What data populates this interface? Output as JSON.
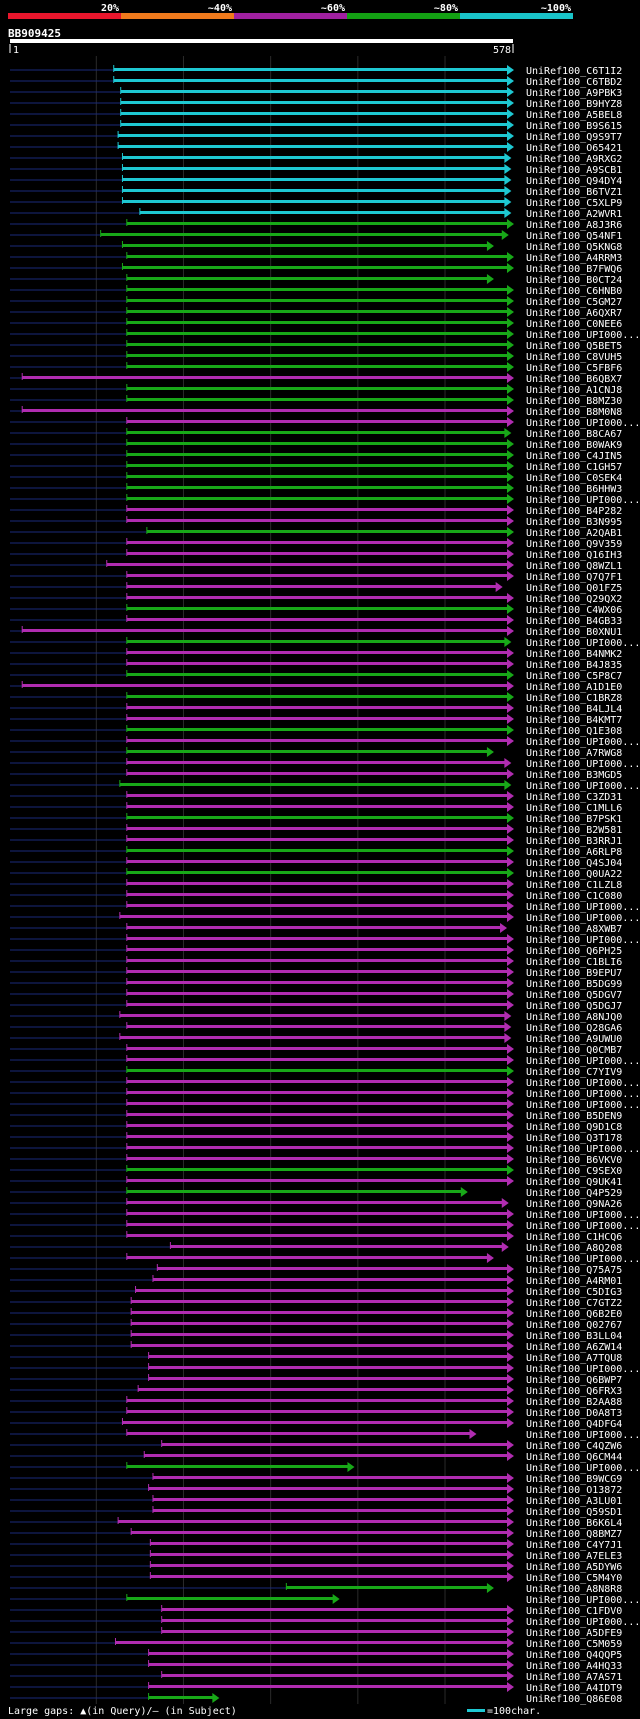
{
  "title": "BB909425",
  "query_start": "1",
  "query_end": "578",
  "query_length": 578,
  "identity_legend": {
    "labels": [
      "20%",
      "~40%",
      "~60%",
      "~80%",
      "~100%"
    ],
    "colors": [
      "#e8162c",
      "#f07a1c",
      "#a020a0",
      "#13a013",
      "#19c3c8"
    ]
  },
  "footer": {
    "gaps_text": "Large gaps: ▲(in Query)/— (in Subject)",
    "scale_text": "=100char."
  },
  "colors": {
    "cyan": "#1ec8d2",
    "green": "#18a818",
    "purple": "#b02cb0",
    "navy": "#1a2a7a",
    "arrow": "#ffffff"
  },
  "chart_data": {
    "type": "alignment_overview",
    "hits": [
      {
        "name": "UniRef100_C6T1I2",
        "color": "cyan",
        "start": 120,
        "end": 578
      },
      {
        "name": "UniRef100_C6TBD2",
        "color": "cyan",
        "start": 120,
        "end": 578
      },
      {
        "name": "UniRef100_A9PBK3",
        "color": "cyan",
        "start": 128,
        "end": 578
      },
      {
        "name": "UniRef100_B9HYZ8",
        "color": "cyan",
        "start": 128,
        "end": 578
      },
      {
        "name": "UniRef100_A5BEL8",
        "color": "cyan",
        "start": 128,
        "end": 578
      },
      {
        "name": "UniRef100_B9S615",
        "color": "cyan",
        "start": 128,
        "end": 578
      },
      {
        "name": "UniRef100_Q9S9T7",
        "color": "cyan",
        "start": 125,
        "end": 578
      },
      {
        "name": "UniRef100_O65421",
        "color": "cyan",
        "start": 125,
        "end": 578
      },
      {
        "name": "UniRef100_A9RXG2",
        "color": "cyan",
        "start": 130,
        "end": 575
      },
      {
        "name": "UniRef100_A9SCB1",
        "color": "cyan",
        "start": 130,
        "end": 575
      },
      {
        "name": "UniRef100_Q94DY4",
        "color": "cyan",
        "start": 130,
        "end": 575
      },
      {
        "name": "UniRef100_B6TVZ1",
        "color": "cyan",
        "start": 130,
        "end": 575
      },
      {
        "name": "UniRef100_C5XLP9",
        "color": "cyan",
        "start": 130,
        "end": 575
      },
      {
        "name": "UniRef100_A2WVR1",
        "color": "cyan",
        "start": 150,
        "end": 575
      },
      {
        "name": "UniRef100_A8J3R6",
        "color": "green",
        "start": 135,
        "end": 578
      },
      {
        "name": "UniRef100_Q54NF1",
        "color": "green",
        "start": 105,
        "end": 572
      },
      {
        "name": "UniRef100_Q5KNG8",
        "color": "green",
        "start": 130,
        "end": 555
      },
      {
        "name": "UniRef100_A4RRM3",
        "color": "green",
        "start": 135,
        "end": 578
      },
      {
        "name": "UniRef100_B7FWQ6",
        "color": "green",
        "start": 130,
        "end": 578
      },
      {
        "name": "UniRef100_B0CT24",
        "color": "green",
        "start": 135,
        "end": 555
      },
      {
        "name": "UniRef100_C6HNB0",
        "color": "green",
        "start": 135,
        "end": 578
      },
      {
        "name": "UniRef100_C5GM27",
        "color": "green",
        "start": 135,
        "end": 578
      },
      {
        "name": "UniRef100_A6QXR7",
        "color": "green",
        "start": 135,
        "end": 578
      },
      {
        "name": "UniRef100_C0NEE6",
        "color": "green",
        "start": 135,
        "end": 578
      },
      {
        "name": "UniRef100_UPI000...",
        "color": "green",
        "start": 135,
        "end": 578
      },
      {
        "name": "UniRef100_Q5BET5",
        "color": "green",
        "start": 135,
        "end": 578
      },
      {
        "name": "UniRef100_C8VUH5",
        "color": "green",
        "start": 135,
        "end": 578
      },
      {
        "name": "UniRef100_C5FBF6",
        "color": "green",
        "start": 135,
        "end": 578
      },
      {
        "name": "UniRef100_B6QBX7",
        "color": "purple",
        "start": 15,
        "end": 578
      },
      {
        "name": "UniRef100_A1CNJ8",
        "color": "green",
        "start": 135,
        "end": 578
      },
      {
        "name": "UniRef100_B8MZ30",
        "color": "green",
        "start": 135,
        "end": 578
      },
      {
        "name": "UniRef100_B8M0N8",
        "color": "purple",
        "start": 15,
        "end": 578
      },
      {
        "name": "UniRef100_UPI000...",
        "color": "purple",
        "start": 135,
        "end": 578
      },
      {
        "name": "UniRef100_B8CA67",
        "color": "green",
        "start": 135,
        "end": 575
      },
      {
        "name": "UniRef100_B0WAK9",
        "color": "green",
        "start": 135,
        "end": 578
      },
      {
        "name": "UniRef100_C4JIN5",
        "color": "green",
        "start": 135,
        "end": 578
      },
      {
        "name": "UniRef100_C1GH57",
        "color": "green",
        "start": 135,
        "end": 578
      },
      {
        "name": "UniRef100_C0SEK4",
        "color": "green",
        "start": 135,
        "end": 578
      },
      {
        "name": "UniRef100_B6HHW3",
        "color": "green",
        "start": 135,
        "end": 578
      },
      {
        "name": "UniRef100_UPI000...",
        "color": "green",
        "start": 135,
        "end": 578
      },
      {
        "name": "UniRef100_B4P282",
        "color": "purple",
        "start": 135,
        "end": 578
      },
      {
        "name": "UniRef100_B3N995",
        "color": "purple",
        "start": 135,
        "end": 578
      },
      {
        "name": "UniRef100_A2QAB1",
        "color": "green",
        "start": 158,
        "end": 578
      },
      {
        "name": "UniRef100_Q9V359",
        "color": "purple",
        "start": 135,
        "end": 578
      },
      {
        "name": "UniRef100_Q16IH3",
        "color": "purple",
        "start": 135,
        "end": 578
      },
      {
        "name": "UniRef100_Q8WZL1",
        "color": "purple",
        "start": 112,
        "end": 578
      },
      {
        "name": "UniRef100_Q7Q7F1",
        "color": "purple",
        "start": 135,
        "end": 578
      },
      {
        "name": "UniRef100_Q01FZ5",
        "color": "purple",
        "start": 135,
        "end": 565
      },
      {
        "name": "UniRef100_Q29QX2",
        "color": "purple",
        "start": 135,
        "end": 578
      },
      {
        "name": "UniRef100_C4WX06",
        "color": "green",
        "start": 135,
        "end": 578
      },
      {
        "name": "UniRef100_B4GB33",
        "color": "purple",
        "start": 135,
        "end": 578
      },
      {
        "name": "UniRef100_B0XNU1",
        "color": "purple",
        "start": 15,
        "end": 578
      },
      {
        "name": "UniRef100_UPI000...",
        "color": "green",
        "start": 135,
        "end": 575
      },
      {
        "name": "UniRef100_B4NMK2",
        "color": "purple",
        "start": 135,
        "end": 578
      },
      {
        "name": "UniRef100_B4J835",
        "color": "purple",
        "start": 135,
        "end": 578
      },
      {
        "name": "UniRef100_C5P8C7",
        "color": "green",
        "start": 135,
        "end": 578
      },
      {
        "name": "UniRef100_A1D1E0",
        "color": "purple",
        "start": 15,
        "end": 578
      },
      {
        "name": "UniRef100_C1BRZ8",
        "color": "green",
        "start": 135,
        "end": 578
      },
      {
        "name": "UniRef100_B4LJL4",
        "color": "purple",
        "start": 135,
        "end": 578
      },
      {
        "name": "UniRef100_B4KMT7",
        "color": "purple",
        "start": 135,
        "end": 578
      },
      {
        "name": "UniRef100_Q1E308",
        "color": "green",
        "start": 135,
        "end": 578
      },
      {
        "name": "UniRef100_UPI000...",
        "color": "purple",
        "start": 135,
        "end": 578
      },
      {
        "name": "UniRef100_A7RWG8",
        "color": "green",
        "start": 135,
        "end": 555
      },
      {
        "name": "UniRef100_UPI000...",
        "color": "purple",
        "start": 135,
        "end": 575
      },
      {
        "name": "UniRef100_B3MGD5",
        "color": "purple",
        "start": 135,
        "end": 578
      },
      {
        "name": "UniRef100_UPI000...",
        "color": "green",
        "start": 127,
        "end": 575
      },
      {
        "name": "UniRef100_C3ZD31",
        "color": "purple",
        "start": 135,
        "end": 578
      },
      {
        "name": "UniRef100_C1MLL6",
        "color": "purple",
        "start": 135,
        "end": 578
      },
      {
        "name": "UniRef100_B7PSK1",
        "color": "green",
        "start": 135,
        "end": 578
      },
      {
        "name": "UniRef100_B2W581",
        "color": "purple",
        "start": 135,
        "end": 578
      },
      {
        "name": "UniRef100_B3RRJ1",
        "color": "purple",
        "start": 135,
        "end": 578
      },
      {
        "name": "UniRef100_A6RLP8",
        "color": "green",
        "start": 135,
        "end": 578
      },
      {
        "name": "UniRef100_Q4SJ04",
        "color": "purple",
        "start": 135,
        "end": 578
      },
      {
        "name": "UniRef100_Q0UA22",
        "color": "green",
        "start": 135,
        "end": 578
      },
      {
        "name": "UniRef100_C1LZL8",
        "color": "purple",
        "start": 135,
        "end": 578
      },
      {
        "name": "UniRef100_C1C080",
        "color": "purple",
        "start": 135,
        "end": 578
      },
      {
        "name": "UniRef100_UPI000...",
        "color": "purple",
        "start": 135,
        "end": 578
      },
      {
        "name": "UniRef100_UPI000...",
        "color": "purple",
        "start": 127,
        "end": 578
      },
      {
        "name": "UniRef100_A8XWB7",
        "color": "purple",
        "start": 135,
        "end": 570
      },
      {
        "name": "UniRef100_UPI000...",
        "color": "purple",
        "start": 135,
        "end": 578
      },
      {
        "name": "UniRef100_Q6PH25",
        "color": "purple",
        "start": 135,
        "end": 578
      },
      {
        "name": "UniRef100_C1BLI6",
        "color": "purple",
        "start": 135,
        "end": 578
      },
      {
        "name": "UniRef100_B9EPU7",
        "color": "purple",
        "start": 135,
        "end": 578
      },
      {
        "name": "UniRef100_B5DG99",
        "color": "purple",
        "start": 135,
        "end": 578
      },
      {
        "name": "UniRef100_Q5DGV7",
        "color": "purple",
        "start": 135,
        "end": 578
      },
      {
        "name": "UniRef100_Q5DGJ7",
        "color": "purple",
        "start": 135,
        "end": 578
      },
      {
        "name": "UniRef100_A8NJQ0",
        "color": "purple",
        "start": 127,
        "end": 575
      },
      {
        "name": "UniRef100_Q28GA6",
        "color": "purple",
        "start": 135,
        "end": 575
      },
      {
        "name": "UniRef100_A9UWU0",
        "color": "purple",
        "start": 127,
        "end": 575
      },
      {
        "name": "UniRef100_Q0CMB7",
        "color": "purple",
        "start": 135,
        "end": 578
      },
      {
        "name": "UniRef100_UPI000...",
        "color": "purple",
        "start": 135,
        "end": 578
      },
      {
        "name": "UniRef100_C7YIV9",
        "color": "green",
        "start": 135,
        "end": 578
      },
      {
        "name": "UniRef100_UPI000...",
        "color": "purple",
        "start": 135,
        "end": 578
      },
      {
        "name": "UniRef100_UPI000...",
        "color": "purple",
        "start": 135,
        "end": 578
      },
      {
        "name": "UniRef100_UPI000...",
        "color": "purple",
        "start": 135,
        "end": 578
      },
      {
        "name": "UniRef100_B5DEN9",
        "color": "purple",
        "start": 135,
        "end": 578
      },
      {
        "name": "UniRef100_Q9D1C8",
        "color": "purple",
        "start": 135,
        "end": 578
      },
      {
        "name": "UniRef100_Q3T178",
        "color": "purple",
        "start": 135,
        "end": 578
      },
      {
        "name": "UniRef100_UPI000...",
        "color": "purple",
        "start": 135,
        "end": 578
      },
      {
        "name": "UniRef100_B6VKV0",
        "color": "purple",
        "start": 135,
        "end": 578
      },
      {
        "name": "UniRef100_C9SEX0",
        "color": "green",
        "start": 135,
        "end": 578
      },
      {
        "name": "UniRef100_Q9UK41",
        "color": "purple",
        "start": 135,
        "end": 578
      },
      {
        "name": "UniRef100_Q4P529",
        "color": "green",
        "start": 135,
        "end": 525
      },
      {
        "name": "UniRef100_Q9NA26",
        "color": "purple",
        "start": 135,
        "end": 572
      },
      {
        "name": "UniRef100_UPI000...",
        "color": "purple",
        "start": 135,
        "end": 578
      },
      {
        "name": "UniRef100_UPI000...",
        "color": "purple",
        "start": 135,
        "end": 578
      },
      {
        "name": "UniRef100_C1HCQ6",
        "color": "purple",
        "start": 135,
        "end": 578
      },
      {
        "name": "UniRef100_A8Q208",
        "color": "purple",
        "start": 185,
        "end": 572
      },
      {
        "name": "UniRef100_UPI000...",
        "color": "purple",
        "start": 135,
        "end": 555
      },
      {
        "name": "UniRef100_Q75A75",
        "color": "purple",
        "start": 170,
        "end": 578
      },
      {
        "name": "UniRef100_A4RM01",
        "color": "purple",
        "start": 165,
        "end": 578
      },
      {
        "name": "UniRef100_C5DIG3",
        "color": "purple",
        "start": 145,
        "end": 578
      },
      {
        "name": "UniRef100_C7GTZ2",
        "color": "purple",
        "start": 140,
        "end": 578
      },
      {
        "name": "UniRef100_Q6B2E0",
        "color": "purple",
        "start": 140,
        "end": 578
      },
      {
        "name": "UniRef100_Q02767",
        "color": "purple",
        "start": 140,
        "end": 578
      },
      {
        "name": "UniRef100_B3LL04",
        "color": "purple",
        "start": 140,
        "end": 578
      },
      {
        "name": "UniRef100_A6ZW14",
        "color": "purple",
        "start": 140,
        "end": 578
      },
      {
        "name": "UniRef100_A7TQU8",
        "color": "purple",
        "start": 160,
        "end": 578
      },
      {
        "name": "UniRef100_UPI000...",
        "color": "purple",
        "start": 160,
        "end": 578
      },
      {
        "name": "UniRef100_Q6BWP7",
        "color": "purple",
        "start": 160,
        "end": 578
      },
      {
        "name": "UniRef100_Q6FRX3",
        "color": "purple",
        "start": 148,
        "end": 578
      },
      {
        "name": "UniRef100_B2AA88",
        "color": "purple",
        "start": 135,
        "end": 578
      },
      {
        "name": "UniRef100_D0A8T3",
        "color": "purple",
        "start": 135,
        "end": 578
      },
      {
        "name": "UniRef100_Q4DFG4",
        "color": "purple",
        "start": 130,
        "end": 578
      },
      {
        "name": "UniRef100_UPI000...",
        "color": "purple",
        "start": 135,
        "end": 535
      },
      {
        "name": "UniRef100_C4QZW6",
        "color": "purple",
        "start": 175,
        "end": 578
      },
      {
        "name": "UniRef100_Q6CM44",
        "color": "purple",
        "start": 155,
        "end": 578
      },
      {
        "name": "UniRef100_UPI000...",
        "color": "green",
        "start": 135,
        "end": 395
      },
      {
        "name": "UniRef100_B9WCG9",
        "color": "purple",
        "start": 165,
        "end": 578
      },
      {
        "name": "UniRef100_O13872",
        "color": "purple",
        "start": 160,
        "end": 578
      },
      {
        "name": "UniRef100_A3LU01",
        "color": "purple",
        "start": 165,
        "end": 578
      },
      {
        "name": "UniRef100_Q59SD1",
        "color": "purple",
        "start": 165,
        "end": 578
      },
      {
        "name": "UniRef100_B6K6L4",
        "color": "purple",
        "start": 125,
        "end": 578
      },
      {
        "name": "UniRef100_Q8BMZ7",
        "color": "purple",
        "start": 140,
        "end": 578
      },
      {
        "name": "UniRef100_C4Y7J1",
        "color": "purple",
        "start": 162,
        "end": 578
      },
      {
        "name": "UniRef100_A7ELE3",
        "color": "purple",
        "start": 162,
        "end": 578
      },
      {
        "name": "UniRef100_A5DYW6",
        "color": "purple",
        "start": 162,
        "end": 578
      },
      {
        "name": "UniRef100_C5M4Y0",
        "color": "purple",
        "start": 162,
        "end": 578
      },
      {
        "name": "UniRef100_A8N8R8",
        "color": "green",
        "start": 318,
        "end": 555
      },
      {
        "name": "UniRef100_UPI000...",
        "color": "green",
        "start": 135,
        "end": 378
      },
      {
        "name": "UniRef100_C1FDV0",
        "color": "purple",
        "start": 175,
        "end": 578
      },
      {
        "name": "UniRef100_UPI000...",
        "color": "purple",
        "start": 175,
        "end": 578
      },
      {
        "name": "UniRef100_A5DFE9",
        "color": "purple",
        "start": 175,
        "end": 578
      },
      {
        "name": "UniRef100_C5M059",
        "color": "purple",
        "start": 122,
        "end": 578
      },
      {
        "name": "UniRef100_Q4QQP5",
        "color": "purple",
        "start": 160,
        "end": 578
      },
      {
        "name": "UniRef100_A4HQ33",
        "color": "purple",
        "start": 160,
        "end": 578
      },
      {
        "name": "UniRef100_A7AS71",
        "color": "purple",
        "start": 175,
        "end": 578
      },
      {
        "name": "UniRef100_A4IDT9",
        "color": "purple",
        "start": 160,
        "end": 578
      },
      {
        "name": "UniRef100_Q86E08",
        "color": "green",
        "start": 160,
        "end": 240
      }
    ]
  }
}
